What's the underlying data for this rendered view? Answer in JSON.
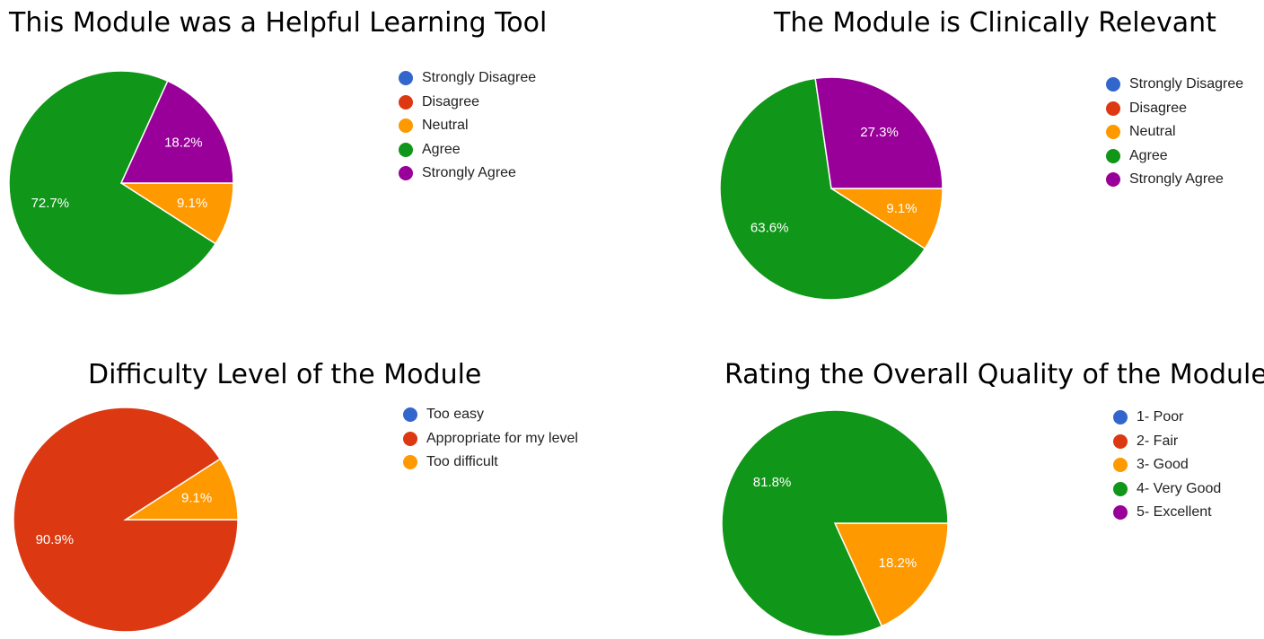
{
  "chart_data": [
    {
      "type": "pie",
      "title": "This Module was a Helpful Learning Tool",
      "categories": [
        "Strongly Disagree",
        "Disagree",
        "Neutral",
        "Agree",
        "Strongly Agree"
      ],
      "values": [
        0,
        0,
        9.1,
        72.7,
        18.2
      ],
      "slice_labels": [
        "",
        "",
        "9.1%",
        "72.7%",
        "18.2%"
      ],
      "colors": [
        "#3366cc",
        "#dc3912",
        "#ff9900",
        "#109618",
        "#990099"
      ],
      "legend_position": "right"
    },
    {
      "type": "pie",
      "title": "The Module is Clinically Relevant",
      "categories": [
        "Strongly Disagree",
        "Disagree",
        "Neutral",
        "Agree",
        "Strongly Agree"
      ],
      "values": [
        0,
        0,
        9.1,
        63.6,
        27.3
      ],
      "slice_labels": [
        "",
        "",
        "9.1%",
        "63.6%",
        "27.3%"
      ],
      "colors": [
        "#3366cc",
        "#dc3912",
        "#ff9900",
        "#109618",
        "#990099"
      ],
      "legend_position": "right"
    },
    {
      "type": "pie",
      "title": "Difficulty Level of the Module",
      "categories": [
        "Too easy",
        "Appropriate for my level",
        "Too difficult"
      ],
      "values": [
        0,
        90.9,
        9.1
      ],
      "slice_labels": [
        "",
        "90.9%",
        "9.1%"
      ],
      "colors": [
        "#3366cc",
        "#dc3912",
        "#ff9900"
      ],
      "legend_position": "right"
    },
    {
      "type": "pie",
      "title": "Rating the Overall Quality of the Module",
      "categories": [
        "1- Poor",
        "2- Fair",
        "3- Good",
        "4- Very Good",
        "5- Excellent"
      ],
      "values": [
        0,
        0,
        18.2,
        81.8,
        0
      ],
      "slice_labels": [
        "",
        "",
        "18.2%",
        "81.8%",
        ""
      ],
      "colors": [
        "#3366cc",
        "#dc3912",
        "#ff9900",
        "#109618",
        "#990099"
      ],
      "legend_position": "right"
    }
  ]
}
